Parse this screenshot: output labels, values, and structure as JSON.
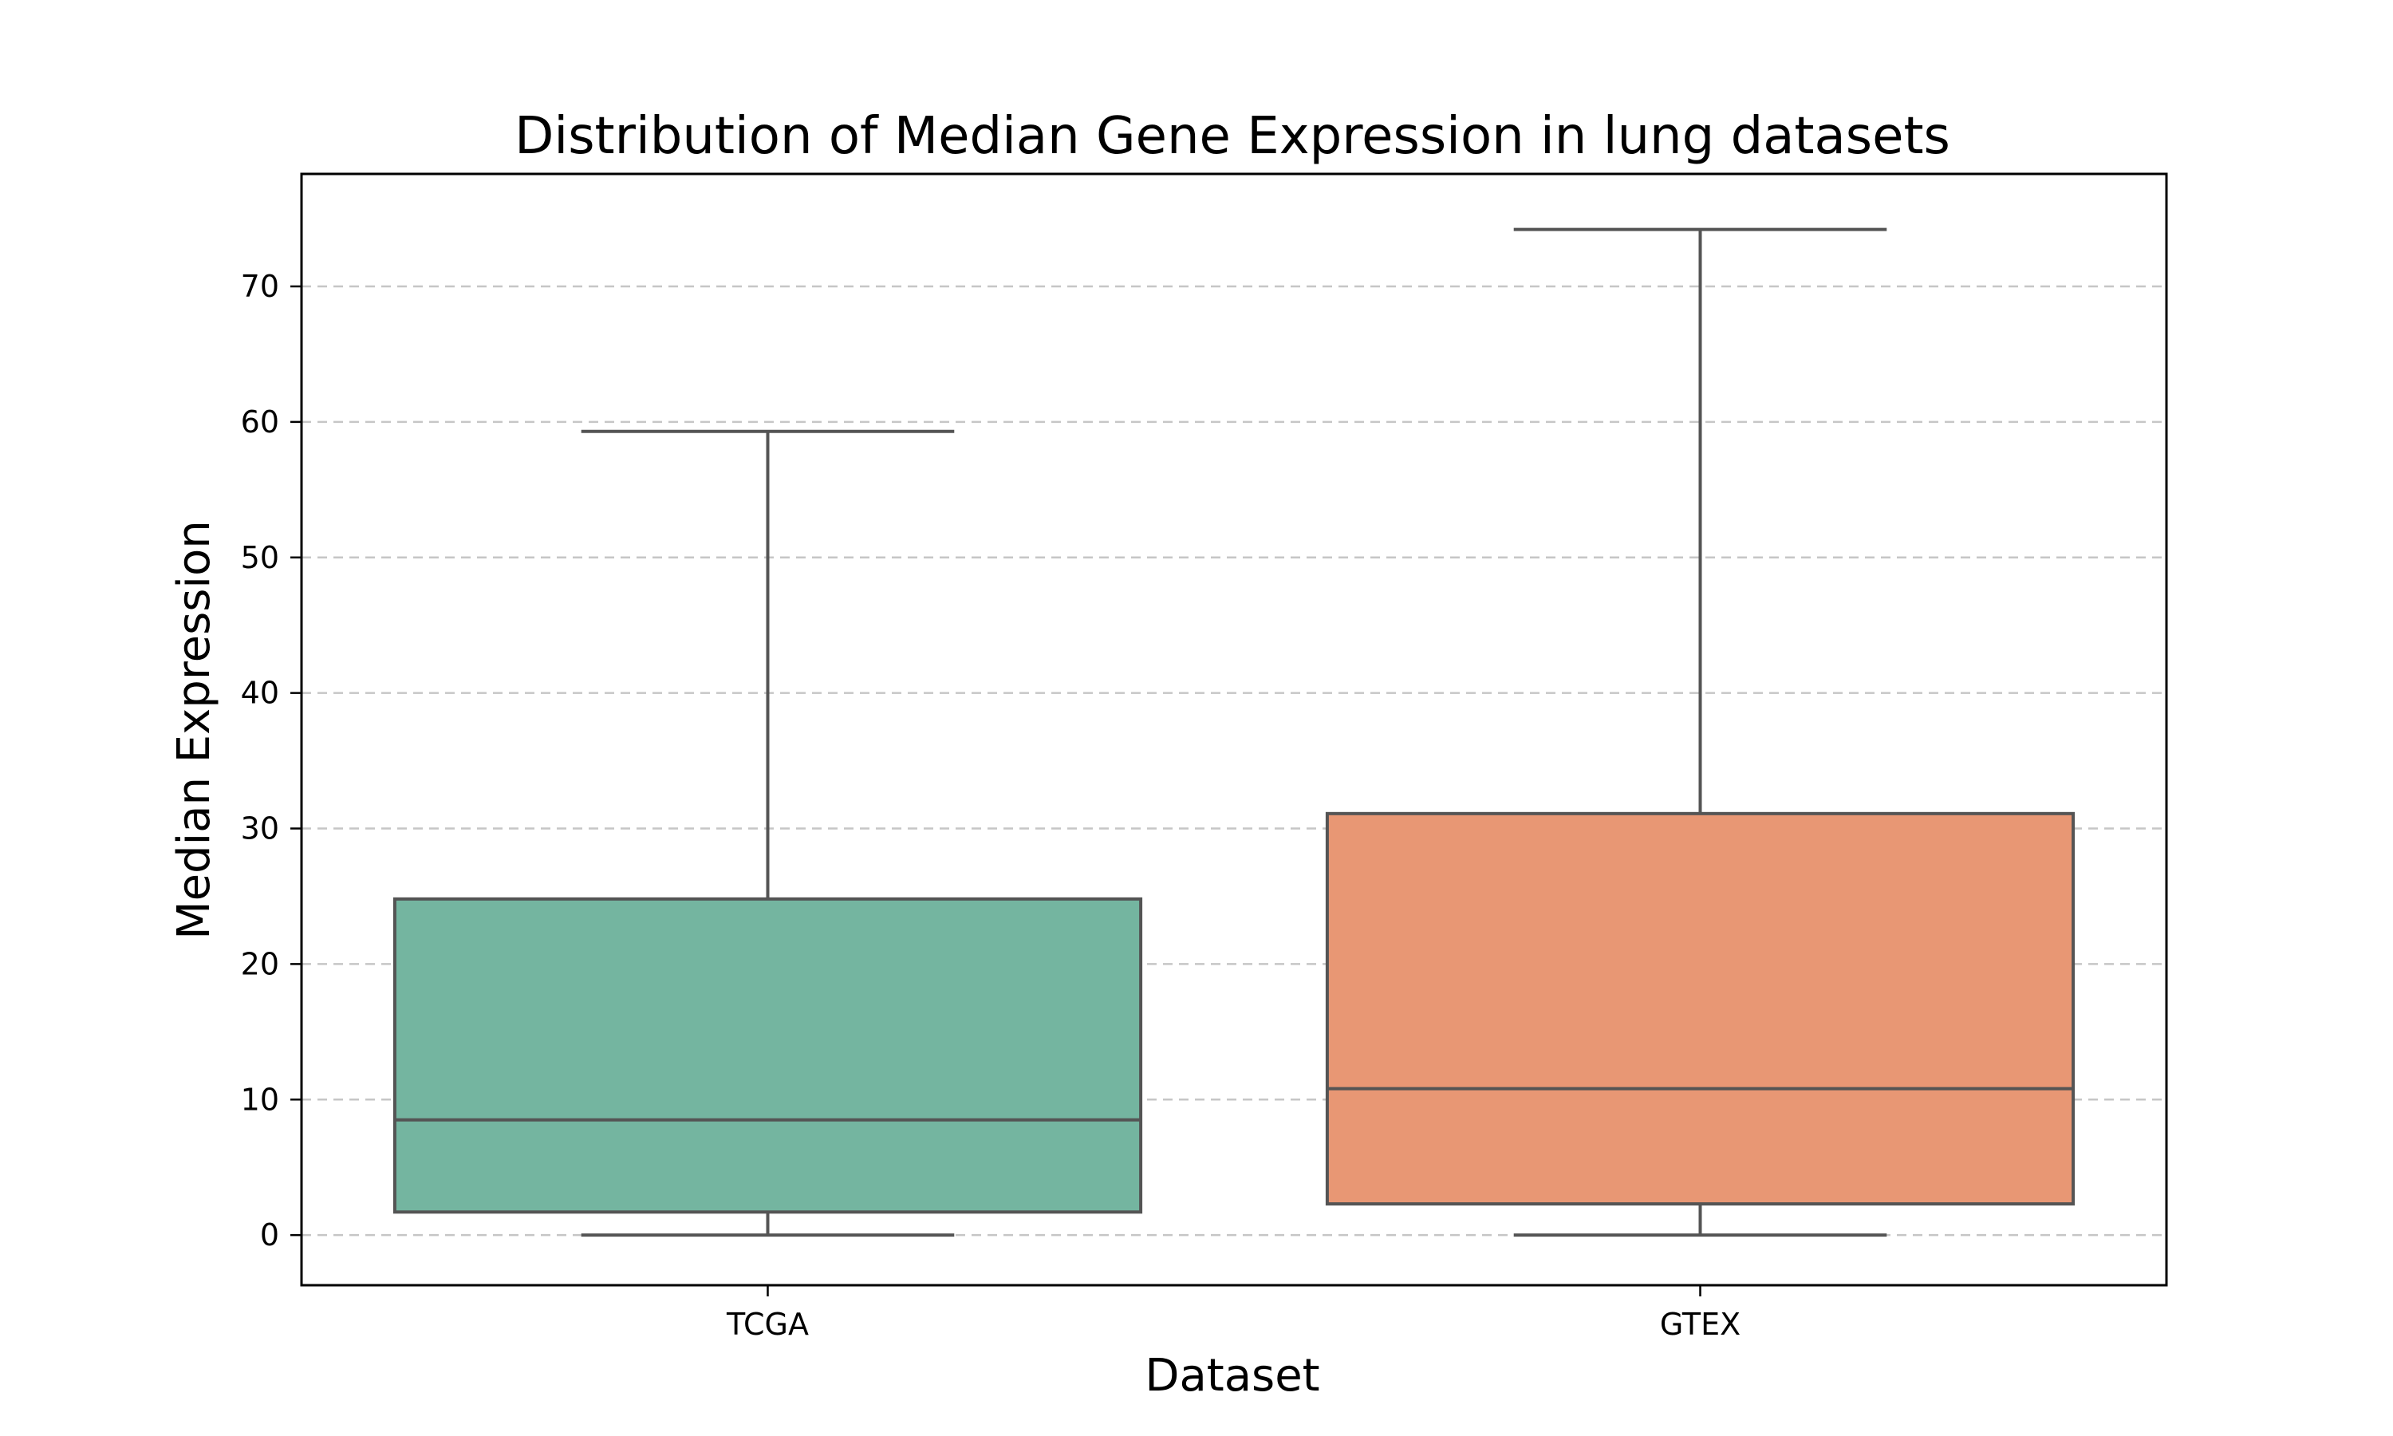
{
  "chart_data": {
    "type": "box",
    "title": "Distribution of Median Gene Expression in lung datasets",
    "xlabel": "Dataset",
    "ylabel": "Median Expression",
    "ylim": [
      -3.7,
      78.3
    ],
    "yticks": [
      0,
      10,
      20,
      30,
      40,
      50,
      60,
      70
    ],
    "grid": "y-dashed",
    "categories": [
      "TCGA",
      "GTEX"
    ],
    "boxes": [
      {
        "category": "TCGA",
        "whisker_low": 0.0,
        "q1": 1.7,
        "median": 8.5,
        "q3": 24.8,
        "whisker_high": 59.3,
        "color": "#74b5a0"
      },
      {
        "category": "GTEX",
        "whisker_low": 0.0,
        "q1": 2.3,
        "median": 10.8,
        "q3": 31.1,
        "whisker_high": 74.2,
        "color": "#e89774"
      }
    ]
  }
}
